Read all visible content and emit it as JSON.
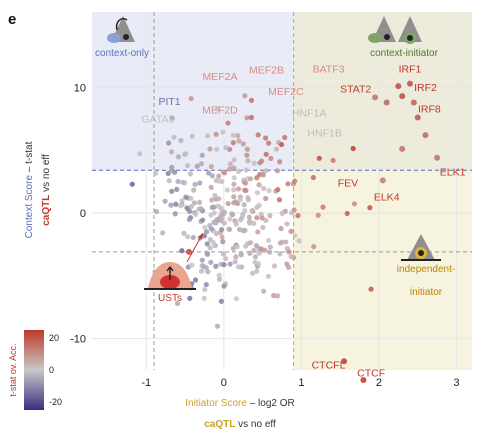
{
  "panel_label": "e",
  "chart_data": {
    "type": "scatter",
    "xlabel": {
      "part1": "Initiator Score",
      "part2": " – log2 OR",
      "sub_bold": "caQTL",
      "sub_rest": " vs no eff"
    },
    "ylabel": {
      "part1": "Context  Score",
      "part2": " – t-stat",
      "sub_bold": "caQTL",
      "sub_rest": " vs no eff"
    },
    "xlim": [
      -1.7,
      3.2
    ],
    "ylim": [
      -12.5,
      16
    ],
    "xticks": [
      "-1",
      "0",
      "1",
      "2",
      "3"
    ],
    "xtick_values": [
      -1,
      0,
      1,
      2,
      3
    ],
    "yticks": [
      "-10",
      "0",
      "10"
    ],
    "ytick_values": [
      -10,
      0,
      10
    ],
    "grid": true,
    "thresholds": {
      "x_gray": -0.9,
      "x_gold": 0.9,
      "y_blue": 3.4,
      "y_gray": -3.1
    },
    "regions": [
      {
        "name": "context-only",
        "color": "#e9ecf7",
        "x": [
          -1.7,
          0.9
        ],
        "y": [
          3.4,
          16
        ]
      },
      {
        "name": "context-initiator",
        "color": "#ecebdc",
        "x": [
          0.9,
          3.2
        ],
        "y": [
          3.4,
          16
        ]
      },
      {
        "name": "independent-initiator",
        "color": "#f6f3df",
        "x": [
          0.9,
          3.2
        ],
        "y": [
          -12.5,
          3.4
        ]
      }
    ],
    "region_labels": {
      "context_only": "context-only",
      "context_initiator": "context-initiator",
      "independent_line1": "independent-",
      "independent_line2": "initiator"
    },
    "usts_label": "USTs",
    "colorbar": {
      "title": "t-stat ov. Acc.",
      "ticks": [
        "20",
        "0",
        "-20"
      ],
      "tick_values": [
        20,
        0,
        -20
      ],
      "range": [
        -25,
        25
      ],
      "colors": [
        "#3b2d7f",
        "#c8c8c8",
        "#c0392b"
      ]
    },
    "highlight_points": [
      {
        "x": 2.25,
        "y": 10.1,
        "v": 18
      },
      {
        "x": 2.3,
        "y": 9.3,
        "v": 18
      },
      {
        "x": 2.4,
        "y": 10.3,
        "v": 17
      },
      {
        "x": 2.45,
        "y": 8.8,
        "v": 15
      },
      {
        "x": 2.5,
        "y": 7.6,
        "v": 16
      },
      {
        "x": 2.1,
        "y": 8.8,
        "v": 14
      },
      {
        "x": 1.95,
        "y": 9.2,
        "v": 12
      },
      {
        "x": 2.6,
        "y": 6.2,
        "v": 14
      },
      {
        "x": 2.75,
        "y": 4.4,
        "v": 12
      },
      {
        "x": 2.3,
        "y": 5.1,
        "v": 12
      },
      {
        "x": 2.05,
        "y": 2.6,
        "v": 10
      },
      {
        "x": 1.55,
        "y": -11.8,
        "v": 20
      },
      {
        "x": 1.8,
        "y": -13.3,
        "v": 20
      },
      {
        "x": -0.45,
        "y": -3.1,
        "v": 18
      }
    ],
    "labels": [
      {
        "text": "IRF1",
        "x": 2.4,
        "y": 11.2,
        "color": "#c0392b"
      },
      {
        "text": "IRF2",
        "x": 2.6,
        "y": 9.7,
        "color": "#c0392b"
      },
      {
        "text": "IRF8",
        "x": 2.65,
        "y": 8.0,
        "color": "#c0392b"
      },
      {
        "text": "STAT2",
        "x": 1.7,
        "y": 9.6,
        "color": "#c0392b"
      },
      {
        "text": "BATF3",
        "x": 1.35,
        "y": 11.2,
        "color": "#d98b84"
      },
      {
        "text": "ELK1",
        "x": 2.95,
        "y": 3.0,
        "color": "#c0392b"
      },
      {
        "text": "ELK4",
        "x": 2.1,
        "y": 1.0,
        "color": "#c0392b"
      },
      {
        "text": "FEV",
        "x": 1.6,
        "y": 2.1,
        "color": "#c0392b"
      },
      {
        "text": "MEF2A",
        "x": -0.05,
        "y": 10.6,
        "color": "#d98b84"
      },
      {
        "text": "MEF2B",
        "x": 0.55,
        "y": 11.1,
        "color": "#d98b84"
      },
      {
        "text": "MEF2C",
        "x": 0.8,
        "y": 9.4,
        "color": "#d98b84"
      },
      {
        "text": "MEF2D",
        "x": -0.05,
        "y": 7.9,
        "color": "#d98b84"
      },
      {
        "text": "PIT1",
        "x": -0.7,
        "y": 8.6,
        "color": "#6b6fae"
      },
      {
        "text": "GATA3",
        "x": -0.85,
        "y": 7.2,
        "color": "#bdbdbd"
      },
      {
        "text": "HNF1A",
        "x": 1.1,
        "y": 7.7,
        "color": "#bdbdbd"
      },
      {
        "text": "HNF1B",
        "x": 1.3,
        "y": 6.1,
        "color": "#bdbdbd"
      },
      {
        "text": "CTCFL",
        "x": 1.35,
        "y": -12.4,
        "color": "#c0392b"
      },
      {
        "text": "CTCF",
        "x": 1.9,
        "y": -13.0,
        "color": "#c0392b"
      }
    ],
    "cloud": {
      "n": 320,
      "center_x": 0.05,
      "center_y": 0.5,
      "sd_x": 0.42,
      "sd_y": 3.3
    }
  }
}
